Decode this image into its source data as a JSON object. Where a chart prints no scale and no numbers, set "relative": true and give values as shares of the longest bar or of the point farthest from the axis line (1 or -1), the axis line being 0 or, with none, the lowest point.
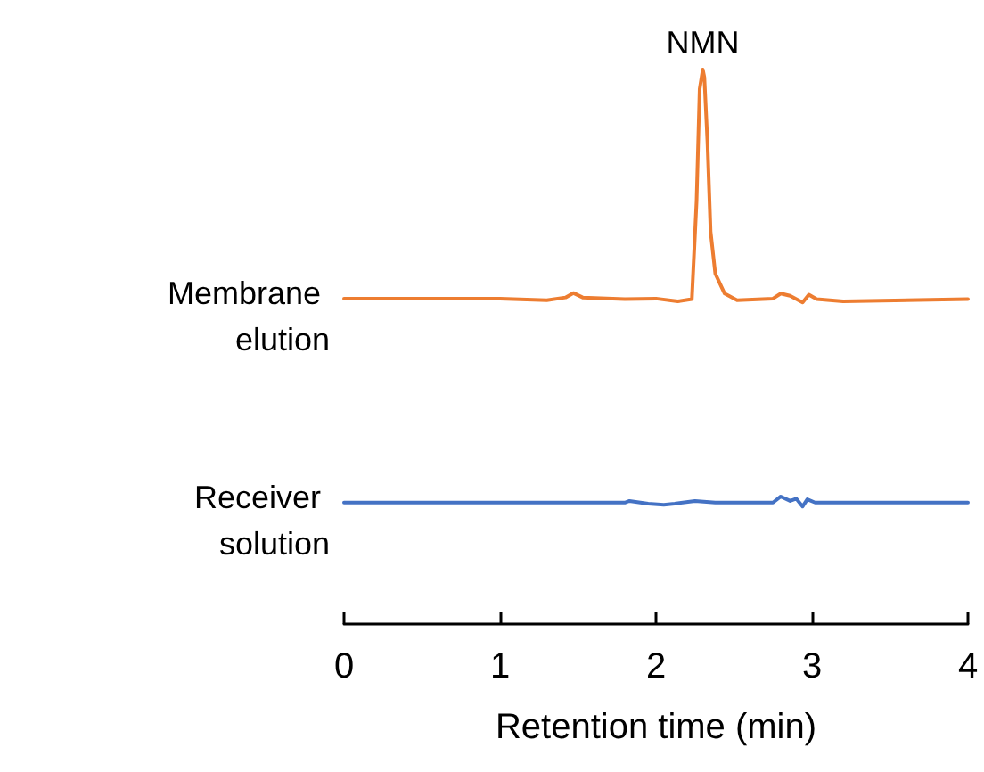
{
  "chart_data": {
    "type": "line",
    "relative": true,
    "xlabel": "Retention time (min)",
    "xlim": [
      0,
      4
    ],
    "xticks": [
      0,
      1,
      2,
      3,
      4
    ],
    "grid": false,
    "legend": false,
    "marker": "none",
    "line_style": "solid",
    "annotations": [
      {
        "text": "NMN",
        "x": 2.3,
        "y": 1
      }
    ],
    "series": [
      {
        "name": "Membrane elution",
        "color": "#ed7d31",
        "x": [
          0,
          1.0,
          1.3,
          1.42,
          1.47,
          1.53,
          1.8,
          2.0,
          2.14,
          2.23,
          2.26,
          2.28,
          2.3,
          2.31,
          2.33,
          2.35,
          2.38,
          2.44,
          2.52,
          2.75,
          2.8,
          2.86,
          2.94,
          2.98,
          3.03,
          3.2,
          4
        ],
        "values": [
          0.587,
          0.587,
          0.584,
          0.589,
          0.597,
          0.589,
          0.586,
          0.587,
          0.582,
          0.586,
          0.762,
          0.965,
          1,
          0.986,
          0.868,
          0.708,
          0.632,
          0.596,
          0.584,
          0.587,
          0.596,
          0.592,
          0.58,
          0.594,
          0.586,
          0.582,
          0.586
        ]
      },
      {
        "name": "Receiver solution",
        "color": "#4472c4",
        "x": [
          0,
          1.8,
          1.83,
          1.95,
          2.05,
          2.12,
          2.25,
          2.38,
          2.75,
          2.8,
          2.86,
          2.9,
          2.94,
          2.97,
          3.02,
          4
        ],
        "values": [
          0.219,
          0.219,
          0.222,
          0.217,
          0.215,
          0.217,
          0.222,
          0.219,
          0.219,
          0.23,
          0.222,
          0.226,
          0.212,
          0.225,
          0.219,
          0.219
        ]
      }
    ]
  }
}
